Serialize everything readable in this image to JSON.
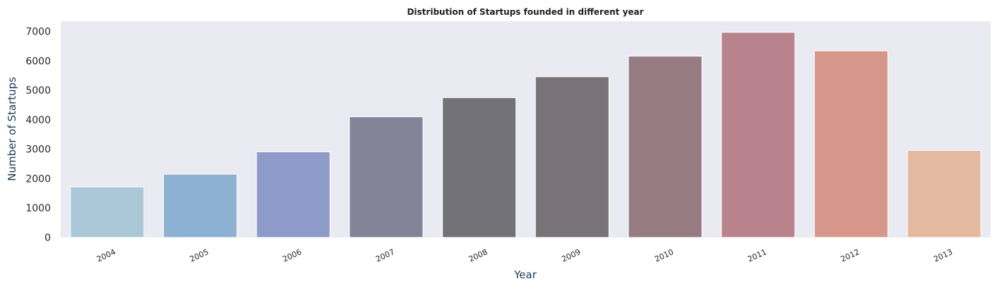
{
  "chart_data": {
    "type": "bar",
    "title": "Distribution of Startups founded in different year",
    "xlabel": "Year",
    "ylabel": "Number of Startups",
    "categories": [
      "2004",
      "2005",
      "2006",
      "2007",
      "2008",
      "2009",
      "2010",
      "2011",
      "2012",
      "2013"
    ],
    "values": [
      1720,
      2150,
      2910,
      4100,
      4750,
      5460,
      6160,
      6970,
      6340,
      2960
    ],
    "ylim": [
      0,
      7350
    ],
    "yticks": [
      0,
      1000,
      2000,
      3000,
      4000,
      5000,
      6000,
      7000
    ],
    "grid": false,
    "legend": "none",
    "colors": [
      "#aac8d7",
      "#8db1d3",
      "#8e9ac9",
      "#858398",
      "#737279",
      "#797277",
      "#967b83",
      "#b9838e",
      "#d6978a",
      "#e3b9a0"
    ],
    "plot_background": "#eaeaf2"
  }
}
